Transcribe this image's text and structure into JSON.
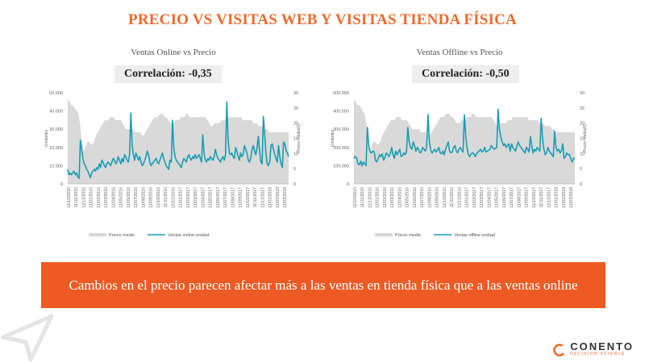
{
  "title": "PRECIO VS VISITAS WEB Y VISITAS TIENDA FÍSICA",
  "colors": {
    "accent": "#EE6A2D",
    "banner": "#EE5A24",
    "area": "#D9D9D9",
    "line": "#1A9DB3"
  },
  "chart_data": [
    {
      "type": "line",
      "title": "Ventas Online vs Precio",
      "correlation_label": "Correlación: -0,35",
      "ylabel": "Unidades",
      "y2label": "Precio medio(€)",
      "ylim": [
        0,
        50000
      ],
      "y2lim": [
        0,
        30
      ],
      "y_ticks": [
        "0",
        "10.000",
        "20.000",
        "30.000",
        "40.000",
        "50.000"
      ],
      "y2_ticks": [
        "0",
        "5",
        "10",
        "15",
        "20",
        "25",
        "30"
      ],
      "x_ticks": [
        "11/10/2015",
        "11/11/2015",
        "11/12/2015",
        "11/01/2016",
        "11/02/2016",
        "11/03/2016",
        "11/04/2016",
        "11/05/2016",
        "11/06/2016",
        "11/07/2016",
        "11/08/2016",
        "11/09/2016",
        "11/10/2016",
        "11/11/2016",
        "11/12/2016",
        "11/01/2017",
        "11/02/2017",
        "11/03/2017",
        "11/04/2017",
        "11/05/2017",
        "11/06/2017",
        "11/07/2017",
        "11/08/2017",
        "11/09/2017",
        "11/10/2017",
        "11/11/2017",
        "11/12/2017",
        "11/01/2018",
        "11/02/2018",
        "11/03/2018"
      ],
      "legend": [
        "Precio medio",
        "Ventas online unidad"
      ],
      "series": [
        {
          "name": "Precio medio",
          "axis": "right",
          "kind": "area",
          "values": [
            28,
            27,
            26,
            26,
            25,
            24,
            23,
            20,
            14,
            11,
            12,
            14,
            14,
            13,
            13,
            14,
            16,
            17,
            18,
            19,
            20,
            21,
            21,
            21,
            22,
            22,
            22,
            21,
            21,
            21,
            21,
            20,
            19,
            18,
            18,
            18,
            18,
            18,
            17,
            17,
            17,
            17,
            16,
            16,
            17,
            18,
            19,
            20,
            21,
            22,
            22,
            22,
            23,
            23,
            23,
            22,
            22,
            21,
            20,
            20,
            20,
            21,
            21,
            21,
            22,
            22,
            22,
            23,
            23,
            22,
            22,
            22,
            22,
            22,
            22,
            22,
            22,
            22,
            22,
            21,
            20,
            19,
            19,
            20,
            20,
            20,
            20,
            21,
            21,
            21,
            22,
            22,
            22,
            22,
            22,
            22,
            22,
            22,
            22,
            21,
            21,
            21,
            21,
            21,
            21,
            20,
            20,
            20,
            19,
            19,
            19,
            19,
            18,
            18,
            17,
            17,
            17,
            17,
            17,
            17,
            17,
            17,
            17,
            17,
            17,
            17
          ]
        },
        {
          "name": "Ventas online unidad",
          "axis": "left",
          "kind": "line",
          "values": [
            8000,
            5000,
            6000,
            5000,
            6000,
            7000,
            5000,
            6000,
            4000,
            3000,
            24000,
            19000,
            14000,
            11000,
            10000,
            8000,
            7000,
            5000,
            3500,
            6000,
            7000,
            8000,
            7000,
            9000,
            8000,
            11000,
            9000,
            13000,
            12000,
            10000,
            9000,
            11000,
            12000,
            11000,
            10000,
            12000,
            14000,
            13000,
            11000,
            12000,
            15000,
            13000,
            11000,
            14000,
            12000,
            16000,
            15000,
            13000,
            12000,
            16000,
            39000,
            21000,
            16000,
            13000,
            17000,
            15000,
            13000,
            15000,
            12000,
            10000,
            11000,
            13000,
            15000,
            18000,
            16000,
            12000,
            10000,
            11000,
            12000,
            13000,
            14000,
            12000,
            11000,
            13000,
            15000,
            17000,
            14000,
            12000,
            10000,
            9000,
            8000,
            13000,
            12000,
            35000,
            20000,
            15000,
            13000,
            12000,
            11000,
            10000,
            9000,
            12000,
            14000,
            13000,
            12000,
            15000,
            16000,
            14000,
            13000,
            15000,
            14000,
            16000,
            14000,
            15000,
            16000,
            14000,
            12000,
            27000,
            17000,
            13000,
            12000,
            14000,
            13000,
            15000,
            14000,
            13000,
            15000,
            19000,
            16000,
            14000,
            13000,
            12000,
            14000,
            15000,
            13000,
            16000,
            45000,
            25000,
            17000,
            16000,
            17000,
            15000,
            14000,
            20000,
            18000,
            15000,
            13000,
            17000,
            15000,
            16000,
            21000,
            19000,
            17000,
            13000,
            12000,
            14000,
            19000,
            21000,
            18000,
            16000,
            20000,
            26000,
            18000,
            12000,
            11000,
            37000,
            27000,
            17000,
            11000,
            10000,
            12000,
            21000,
            22000,
            19000,
            16000,
            14000,
            12000,
            21000,
            15000,
            11000,
            9000,
            23000,
            22000,
            18000,
            17000,
            15000
          ]
        }
      ]
    },
    {
      "type": "line",
      "title": "Ventas Offline vs Precio",
      "correlation_label": "Correlación: -0,50",
      "ylabel": "Unidades",
      "y2label": "Precio medio(€)",
      "ylim": [
        0,
        500000
      ],
      "y2lim": [
        0,
        30
      ],
      "y_ticks": [
        "0",
        "100.000",
        "200.000",
        "300.000",
        "400.000",
        "500.000"
      ],
      "y2_ticks": [
        "0",
        "5",
        "10",
        "15",
        "20",
        "25",
        "30"
      ],
      "x_ticks": [
        "11/10/2015",
        "11/11/2015",
        "11/12/2015",
        "11/01/2016",
        "11/02/2016",
        "11/03/2016",
        "11/04/2016",
        "11/05/2016",
        "11/06/2016",
        "11/07/2016",
        "11/08/2016",
        "11/09/2016",
        "11/10/2016",
        "11/11/2016",
        "11/12/2016",
        "11/01/2017",
        "11/02/2017",
        "11/03/2017",
        "11/04/2017",
        "11/05/2017",
        "11/06/2017",
        "11/07/2017",
        "11/08/2017",
        "11/09/2017",
        "11/10/2017",
        "11/11/2017",
        "11/12/2017",
        "11/01/2018",
        "11/02/2018",
        "11/03/2018"
      ],
      "legend": [
        "Precio medio",
        "Ventas offline unidad"
      ],
      "series": [
        {
          "name": "Precio medio",
          "axis": "right",
          "kind": "area",
          "values": [
            28,
            27,
            26,
            26,
            25,
            24,
            23,
            20,
            14,
            11,
            12,
            14,
            14,
            13,
            13,
            14,
            16,
            17,
            18,
            19,
            20,
            21,
            21,
            21,
            22,
            22,
            22,
            21,
            21,
            21,
            21,
            20,
            19,
            18,
            18,
            18,
            18,
            18,
            17,
            17,
            17,
            17,
            16,
            16,
            17,
            18,
            19,
            20,
            21,
            22,
            22,
            22,
            23,
            23,
            23,
            22,
            22,
            21,
            20,
            20,
            20,
            21,
            21,
            21,
            22,
            22,
            22,
            23,
            23,
            22,
            22,
            22,
            22,
            22,
            22,
            22,
            22,
            22,
            22,
            21,
            20,
            19,
            19,
            20,
            20,
            20,
            20,
            21,
            21,
            21,
            22,
            22,
            22,
            22,
            22,
            22,
            22,
            22,
            22,
            21,
            21,
            21,
            21,
            21,
            21,
            20,
            20,
            20,
            19,
            19,
            19,
            19,
            18,
            18,
            17,
            17,
            17,
            17,
            17,
            17,
            17,
            17,
            17,
            17,
            17,
            17
          ]
        },
        {
          "name": "Ventas offline unidad",
          "axis": "left",
          "kind": "line",
          "values": [
            140000,
            150000,
            145000,
            110000,
            105000,
            125000,
            100000,
            120000,
            110000,
            100000,
            310000,
            210000,
            175000,
            170000,
            180000,
            175000,
            130000,
            120000,
            140000,
            160000,
            150000,
            165000,
            130000,
            145000,
            170000,
            160000,
            150000,
            165000,
            200000,
            160000,
            140000,
            180000,
            160000,
            175000,
            190000,
            150000,
            155000,
            170000,
            160000,
            175000,
            310000,
            230000,
            200000,
            190000,
            230000,
            210000,
            180000,
            200000,
            190000,
            170000,
            175000,
            200000,
            190000,
            180000,
            205000,
            380000,
            230000,
            185000,
            170000,
            180000,
            190000,
            175000,
            185000,
            200000,
            170000,
            165000,
            180000,
            160000,
            190000,
            210000,
            230000,
            180000,
            170000,
            175000,
            200000,
            210000,
            180000,
            170000,
            190000,
            200000,
            185000,
            175000,
            380000,
            260000,
            200000,
            160000,
            150000,
            165000,
            170000,
            165000,
            150000,
            165000,
            175000,
            180000,
            190000,
            175000,
            180000,
            200000,
            175000,
            180000,
            185000,
            190000,
            210000,
            200000,
            190000,
            195000,
            200000,
            410000,
            300000,
            260000,
            230000,
            210000,
            220000,
            200000,
            210000,
            220000,
            180000,
            220000,
            200000,
            190000,
            180000,
            210000,
            230000,
            210000,
            200000,
            190000,
            180000,
            170000,
            200000,
            190000,
            175000,
            260000,
            210000,
            170000,
            190000,
            180000,
            200000,
            190000,
            180000,
            360000,
            250000,
            190000,
            160000,
            170000,
            200000,
            180000,
            170000,
            160000,
            150000,
            290000,
            200000,
            180000,
            190000,
            170000,
            180000,
            220000,
            140000,
            150000,
            170000,
            160000,
            160000,
            140000,
            120000,
            140000,
            145000
          ]
        }
      ]
    }
  ],
  "banner": {
    "text": "Cambios en el precio parecen afectar más a las ventas en tienda física que a las ventas online"
  },
  "brand": {
    "name": "CONENTO",
    "tagline": "DECISION SCIENCE"
  }
}
